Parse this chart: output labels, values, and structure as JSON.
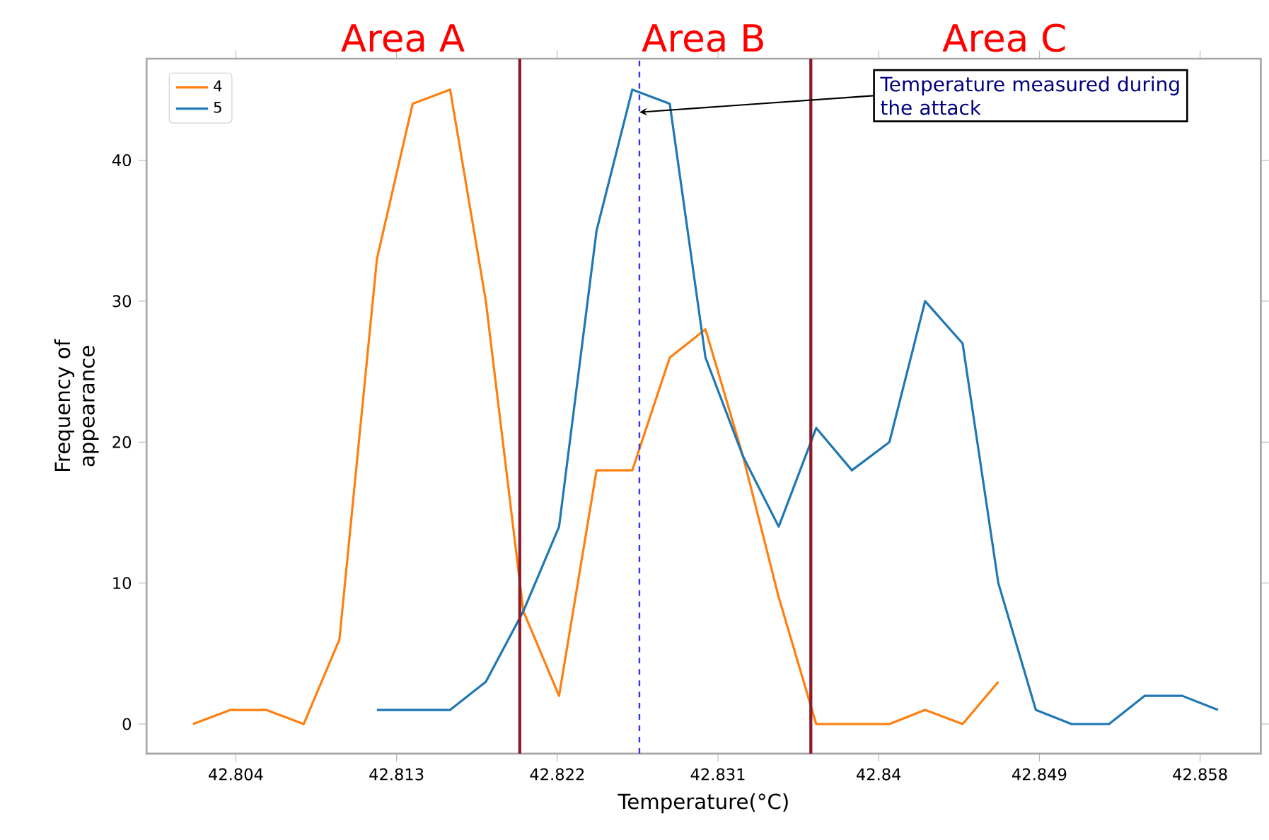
{
  "chart_data": {
    "type": "line",
    "xlabel": "Temperature(°C)",
    "ylabel": "Frequency of appearance",
    "xlim": [
      42.799,
      42.8614
    ],
    "ylim": [
      -2.1,
      47.2
    ],
    "xticks": [
      42.804,
      42.813,
      42.822,
      42.831,
      42.84,
      42.849,
      42.858
    ],
    "yticks": [
      0,
      10,
      20,
      30,
      40
    ],
    "series": [
      {
        "name": "4",
        "color": "#ff7f0e",
        "x": [
          42.8016,
          42.8037,
          42.8057,
          42.8078,
          42.8098,
          42.8119,
          42.8139,
          42.816,
          42.818,
          42.8201,
          42.8221,
          42.8242,
          42.8262,
          42.8283,
          42.8303,
          42.8324,
          42.8344,
          42.8365,
          42.8385,
          42.8406,
          42.8426,
          42.8447,
          42.8467
        ],
        "values": [
          0,
          1,
          1,
          0,
          6,
          33,
          44,
          45,
          30,
          8,
          2,
          18,
          18,
          26,
          28,
          19,
          9,
          0,
          0,
          0,
          1,
          0,
          3
        ]
      },
      {
        "name": "5",
        "color": "#1f77b4",
        "x": [
          42.8119,
          42.8139,
          42.816,
          42.818,
          42.8201,
          42.8221,
          42.8242,
          42.8262,
          42.8283,
          42.8303,
          42.8324,
          42.8344,
          42.8365,
          42.8385,
          42.8406,
          42.8426,
          42.8447,
          42.8467,
          42.8488,
          42.8508,
          42.8529,
          42.8549,
          42.857,
          42.859
        ],
        "values": [
          1,
          1,
          1,
          3,
          8,
          14,
          35,
          45,
          44,
          26,
          19,
          14,
          21,
          18,
          20,
          30,
          27,
          10,
          1,
          0,
          0,
          2,
          2,
          1
        ]
      }
    ],
    "ref_lines": [
      {
        "axis": "x",
        "value": 42.8199,
        "color": "#8b1a2b",
        "line_style": "solid"
      },
      {
        "axis": "x",
        "value": 42.8362,
        "color": "#8b1a2b",
        "line_style": "solid"
      },
      {
        "axis": "x",
        "value": 42.8266,
        "color": "#3333ee",
        "line_style": "dashed"
      }
    ],
    "annotations": [
      "Area A",
      "Area B",
      "Area C",
      {
        "text": "Temperature measured during the attack",
        "x": 42.8266,
        "y": 43.4
      }
    ],
    "legend": "top left",
    "grid": false,
    "marker": "none",
    "line_style": "solid"
  }
}
